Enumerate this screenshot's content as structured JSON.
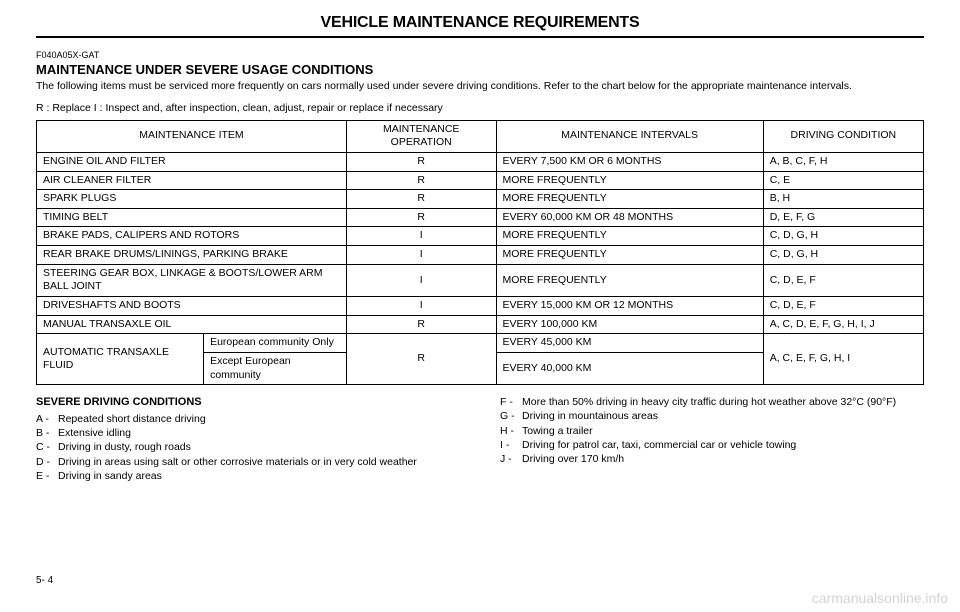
{
  "page": {
    "title": "VEHICLE MAINTENANCE REQUIREMENTS",
    "code": "F040A05X-GAT",
    "section_title": "MAINTENANCE UNDER SEVERE USAGE CONDITIONS",
    "intro": "The following items must be serviced more frequently on cars normally used under severe driving conditions. Refer to the chart below for the appropriate maintenance intervals.",
    "legend": "R : Replace     I : Inspect and, after inspection, clean, adjust, repair or replace if necessary",
    "pagenum": "5- 4",
    "watermark": "carmanualsonline.info"
  },
  "table": {
    "headers": {
      "item": "MAINTENANCE ITEM",
      "op": "MAINTENANCE OPERATION",
      "int": "MAINTENANCE INTERVALS",
      "cond": "DRIVING CONDITION"
    },
    "rows": {
      "r1": {
        "item": "ENGINE OIL AND FILTER",
        "op": "R",
        "int": "EVERY 7,500 KM OR 6 MONTHS",
        "cond": "A, B, C, F, H"
      },
      "r2": {
        "item": "AIR CLEANER FILTER",
        "op": "R",
        "int": "MORE FREQUENTLY",
        "cond": "C, E"
      },
      "r3": {
        "item": "SPARK PLUGS",
        "op": "R",
        "int": "MORE FREQUENTLY",
        "cond": "B, H"
      },
      "r4": {
        "item": "TIMING BELT",
        "op": "R",
        "int": "EVERY 60,000 KM OR 48 MONTHS",
        "cond": "D, E, F, G"
      },
      "r5": {
        "item": "BRAKE PADS, CALIPERS AND ROTORS",
        "op": "I",
        "int": "MORE FREQUENTLY",
        "cond": "C, D, G, H"
      },
      "r6": {
        "item": "REAR BRAKE DRUMS/LININGS, PARKING BRAKE",
        "op": "I",
        "int": "MORE FREQUENTLY",
        "cond": "C, D, G, H"
      },
      "r7": {
        "item": "STEERING GEAR BOX, LINKAGE & BOOTS/LOWER ARM BALL JOINT",
        "op": "I",
        "int": "MORE FREQUENTLY",
        "cond": "C, D, E, F"
      },
      "r8": {
        "item": "DRIVESHAFTS AND BOOTS",
        "op": "I",
        "int": "EVERY 15,000 KM OR 12 MONTHS",
        "cond": "C, D, E, F"
      },
      "r9": {
        "item": "MANUAL TRANSAXLE OIL",
        "op": "R",
        "int": "EVERY 100,000 KM",
        "cond": "A, C, D, E, F, G, H, I, J"
      },
      "r10a": {
        "item": "AUTOMATIC TRANSAXLE FLUID",
        "sub": "European community Only",
        "op": "R",
        "int": "EVERY 45,000 KM",
        "cond": "A, C, E, F, G, H, I"
      },
      "r10b": {
        "sub": "Except European community",
        "int": "EVERY 40,000 KM"
      }
    }
  },
  "conditions": {
    "title": "SEVERE DRIVING CONDITIONS",
    "left": {
      "a": {
        "l": "A  -",
        "t": "Repeated short distance driving"
      },
      "b": {
        "l": "B  -",
        "t": "Extensive idling"
      },
      "c": {
        "l": "C  -",
        "t": "Driving in dusty, rough roads"
      },
      "d": {
        "l": "D  -",
        "t": "Driving in areas using salt or other corrosive materials or in very cold weather"
      },
      "e": {
        "l": "E  -",
        "t": "Driving in sandy areas"
      }
    },
    "right": {
      "f": {
        "l": "F  -",
        "t": "More than 50% driving in heavy city traffic during hot weather above 32°C (90°F)"
      },
      "g": {
        "l": "G  -",
        "t": "Driving in mountainous areas"
      },
      "h": {
        "l": "H  -",
        "t": "Towing a trailer"
      },
      "i": {
        "l": "I   -",
        "t": "Driving for patrol car, taxi, commercial car or vehicle towing"
      },
      "j": {
        "l": "J  -",
        "t": "Driving over 170 km/h"
      }
    }
  }
}
